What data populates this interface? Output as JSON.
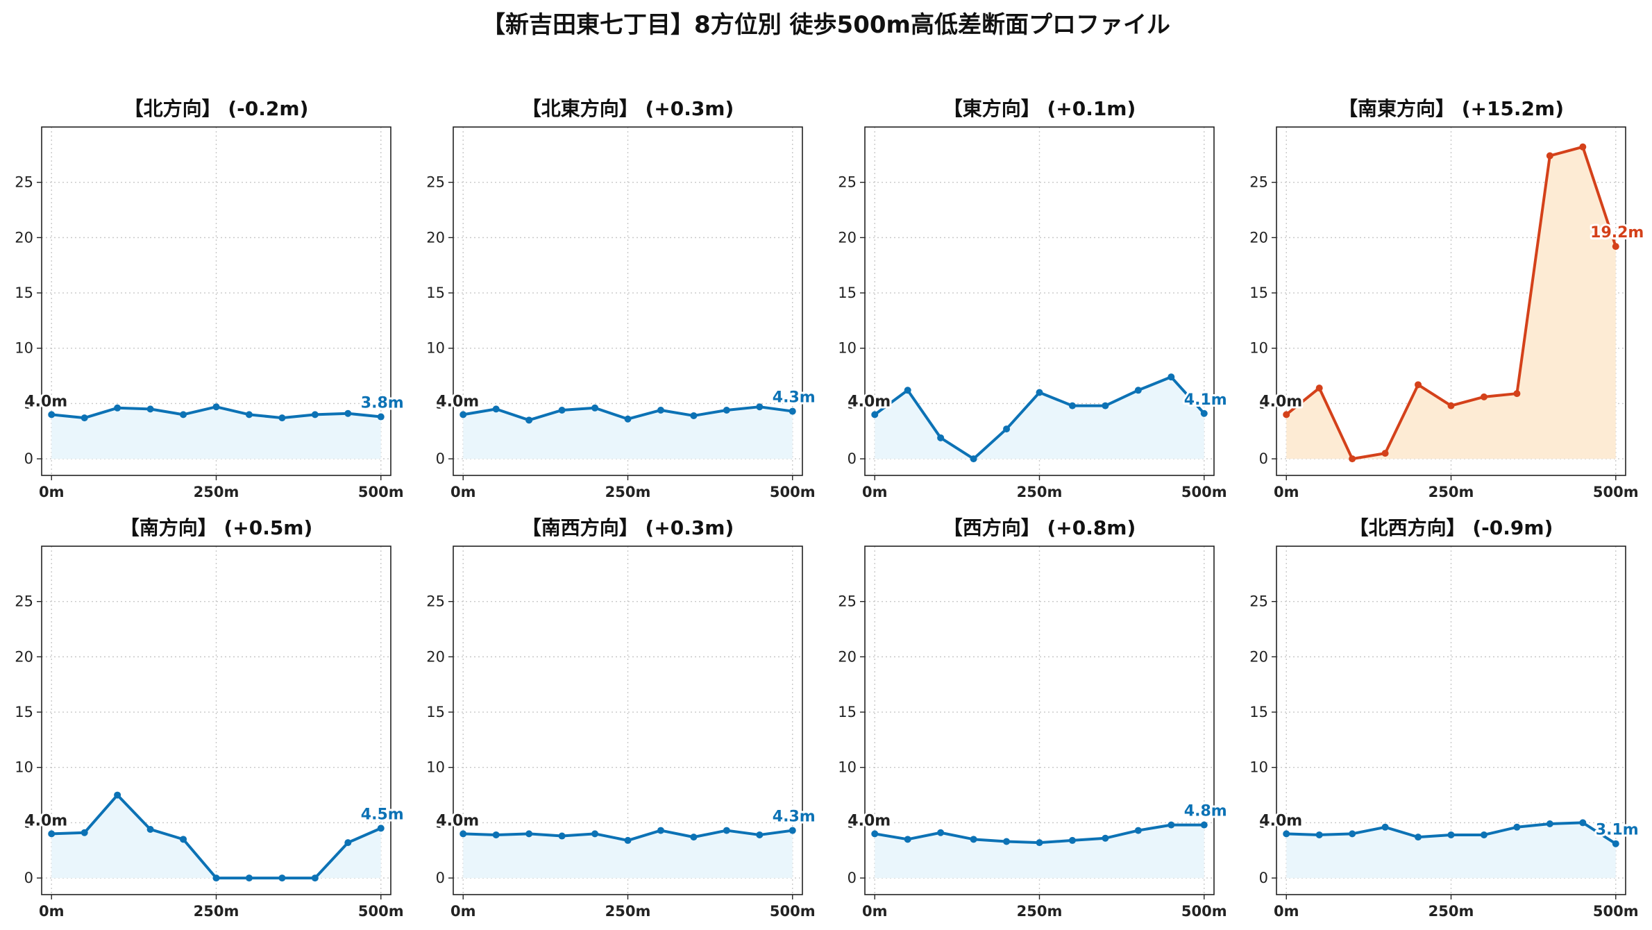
{
  "title": "【新吉田東七丁目】8方位別 徒歩500m高低差断面プロファイル",
  "colors": {
    "normal_line": "#0c72b5",
    "normal_fill": "#eaf6fc",
    "highlight_line": "#d4411a",
    "highlight_fill": "#fdebd4",
    "start_label": "#222222"
  },
  "chart_data": [
    {
      "type": "area",
      "title": "【北方向】 (-0.2m)",
      "start_label": "4.0m",
      "end_label": "3.8m",
      "highlight": false,
      "x": [
        0,
        50,
        100,
        150,
        200,
        250,
        300,
        350,
        400,
        450,
        500
      ],
      "values": [
        4.0,
        3.7,
        4.6,
        4.5,
        4.0,
        4.7,
        4.0,
        3.7,
        4.0,
        4.1,
        3.8
      ],
      "xticks": [
        "0m",
        "250m",
        "500m"
      ],
      "yticks": [
        0,
        5,
        10,
        15,
        20,
        25
      ],
      "xlim": [
        -15,
        515
      ],
      "ylim": [
        -1.5,
        30
      ],
      "grid": true
    },
    {
      "type": "area",
      "title": "【北東方向】 (+0.3m)",
      "start_label": "4.0m",
      "end_label": "4.3m",
      "highlight": false,
      "x": [
        0,
        50,
        100,
        150,
        200,
        250,
        300,
        350,
        400,
        450,
        500
      ],
      "values": [
        4.0,
        4.5,
        3.5,
        4.4,
        4.6,
        3.6,
        4.4,
        3.9,
        4.4,
        4.7,
        4.3
      ],
      "xticks": [
        "0m",
        "250m",
        "500m"
      ],
      "yticks": [
        0,
        5,
        10,
        15,
        20,
        25
      ],
      "xlim": [
        -15,
        515
      ],
      "ylim": [
        -1.5,
        30
      ],
      "grid": true
    },
    {
      "type": "area",
      "title": "【東方向】 (+0.1m)",
      "start_label": "4.0m",
      "end_label": "4.1m",
      "highlight": false,
      "x": [
        0,
        50,
        100,
        150,
        200,
        250,
        300,
        350,
        400,
        450,
        500
      ],
      "values": [
        4.0,
        6.2,
        1.9,
        0.0,
        2.7,
        6.0,
        4.8,
        4.8,
        6.2,
        7.4,
        4.1
      ],
      "xticks": [
        "0m",
        "250m",
        "500m"
      ],
      "yticks": [
        0,
        5,
        10,
        15,
        20,
        25
      ],
      "xlim": [
        -15,
        515
      ],
      "ylim": [
        -1.5,
        30
      ],
      "grid": true
    },
    {
      "type": "area",
      "title": "【南東方向】 (+15.2m)",
      "start_label": "4.0m",
      "end_label": "19.2m",
      "highlight": true,
      "x": [
        0,
        50,
        100,
        150,
        200,
        250,
        300,
        350,
        400,
        450,
        500
      ],
      "values": [
        4.0,
        6.4,
        0.0,
        0.5,
        6.7,
        4.8,
        5.6,
        5.9,
        27.4,
        28.2,
        19.2
      ],
      "xticks": [
        "0m",
        "250m",
        "500m"
      ],
      "yticks": [
        0,
        5,
        10,
        15,
        20,
        25
      ],
      "xlim": [
        -15,
        515
      ],
      "ylim": [
        -1.5,
        30
      ],
      "grid": true
    },
    {
      "type": "area",
      "title": "【南方向】 (+0.5m)",
      "start_label": "4.0m",
      "end_label": "4.5m",
      "highlight": false,
      "x": [
        0,
        50,
        100,
        150,
        200,
        250,
        300,
        350,
        400,
        450,
        500
      ],
      "values": [
        4.0,
        4.1,
        7.5,
        4.4,
        3.5,
        0.0,
        0.0,
        0.0,
        0.0,
        3.2,
        4.5
      ],
      "xticks": [
        "0m",
        "250m",
        "500m"
      ],
      "yticks": [
        0,
        5,
        10,
        15,
        20,
        25
      ],
      "xlim": [
        -15,
        515
      ],
      "ylim": [
        -1.5,
        30
      ],
      "grid": true
    },
    {
      "type": "area",
      "title": "【南西方向】 (+0.3m)",
      "start_label": "4.0m",
      "end_label": "4.3m",
      "highlight": false,
      "x": [
        0,
        50,
        100,
        150,
        200,
        250,
        300,
        350,
        400,
        450,
        500
      ],
      "values": [
        4.0,
        3.9,
        4.0,
        3.8,
        4.0,
        3.4,
        4.3,
        3.7,
        4.3,
        3.9,
        4.3
      ],
      "xticks": [
        "0m",
        "250m",
        "500m"
      ],
      "yticks": [
        0,
        5,
        10,
        15,
        20,
        25
      ],
      "xlim": [
        -15,
        515
      ],
      "ylim": [
        -1.5,
        30
      ],
      "grid": true
    },
    {
      "type": "area",
      "title": "【西方向】 (+0.8m)",
      "start_label": "4.0m",
      "end_label": "4.8m",
      "highlight": false,
      "x": [
        0,
        50,
        100,
        150,
        200,
        250,
        300,
        350,
        400,
        450,
        500
      ],
      "values": [
        4.0,
        3.5,
        4.1,
        3.5,
        3.3,
        3.2,
        3.4,
        3.6,
        4.3,
        4.8,
        4.8
      ],
      "xticks": [
        "0m",
        "250m",
        "500m"
      ],
      "yticks": [
        0,
        5,
        10,
        15,
        20,
        25
      ],
      "xlim": [
        -15,
        515
      ],
      "ylim": [
        -1.5,
        30
      ],
      "grid": true
    },
    {
      "type": "area",
      "title": "【北西方向】 (-0.9m)",
      "start_label": "4.0m",
      "end_label": "3.1m",
      "highlight": false,
      "x": [
        0,
        50,
        100,
        150,
        200,
        250,
        300,
        350,
        400,
        450,
        500
      ],
      "values": [
        4.0,
        3.9,
        4.0,
        4.6,
        3.7,
        3.9,
        3.9,
        4.6,
        4.9,
        5.0,
        3.1
      ],
      "xticks": [
        "0m",
        "250m",
        "500m"
      ],
      "yticks": [
        0,
        5,
        10,
        15,
        20,
        25
      ],
      "xlim": [
        -15,
        515
      ],
      "ylim": [
        -1.5,
        30
      ],
      "grid": true
    }
  ]
}
